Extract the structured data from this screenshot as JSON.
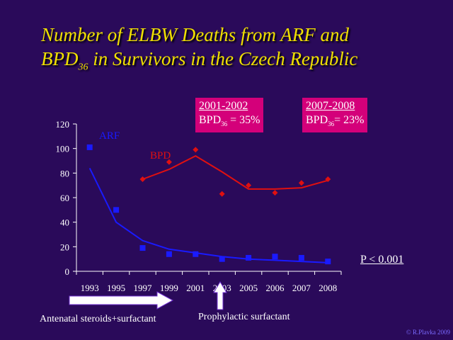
{
  "title": {
    "line1": "Number of ELBW Deaths from ARF and",
    "line2_pre": "BPD",
    "line2_sub": "36",
    "line2_post": " in Survivors in the Czech Republic"
  },
  "boxes": [
    {
      "period": "2001-2002",
      "label": "BPD",
      "sub": "36",
      "value": " = 35%"
    },
    {
      "period": "2007-2008",
      "label": "BPD",
      "sub": "36",
      "value": "= 23%"
    }
  ],
  "p_value": "P < 0.001",
  "arrow_notes": {
    "antenatal": "Antenatal steroids+surfactant",
    "prophylactic": "Prophylactic surfactant"
  },
  "copyright": "© R.Plavka 2009",
  "colors": {
    "background": "#2a0a5a",
    "title": "#f0e000",
    "arf": "#1a1aff",
    "bpd": "#e01010",
    "box": "#d4007a"
  },
  "chart_data": {
    "type": "scatter",
    "categories": [
      "1993",
      "1995",
      "1997",
      "1999",
      "2001",
      "2003",
      "2005",
      "2006",
      "2007",
      "2008"
    ],
    "ylim": [
      0,
      120
    ],
    "yticks": [
      0,
      20,
      40,
      60,
      80,
      100,
      120
    ],
    "series": [
      {
        "name": "ARF",
        "color": "#1a1aff",
        "marker": "square",
        "values": [
          101,
          50,
          19,
          14,
          14,
          10,
          11,
          12,
          11,
          8
        ],
        "trend": [
          84,
          40,
          25,
          18,
          15,
          12,
          10,
          9,
          8,
          7
        ]
      },
      {
        "name": "BPD",
        "color": "#e01010",
        "marker": "diamond",
        "values": [
          null,
          null,
          75,
          89,
          99,
          63,
          70,
          64,
          72,
          75
        ],
        "trend": [
          null,
          null,
          75,
          83,
          94,
          81,
          67,
          67,
          68,
          74
        ]
      }
    ],
    "title": "",
    "xlabel": "",
    "ylabel": ""
  }
}
